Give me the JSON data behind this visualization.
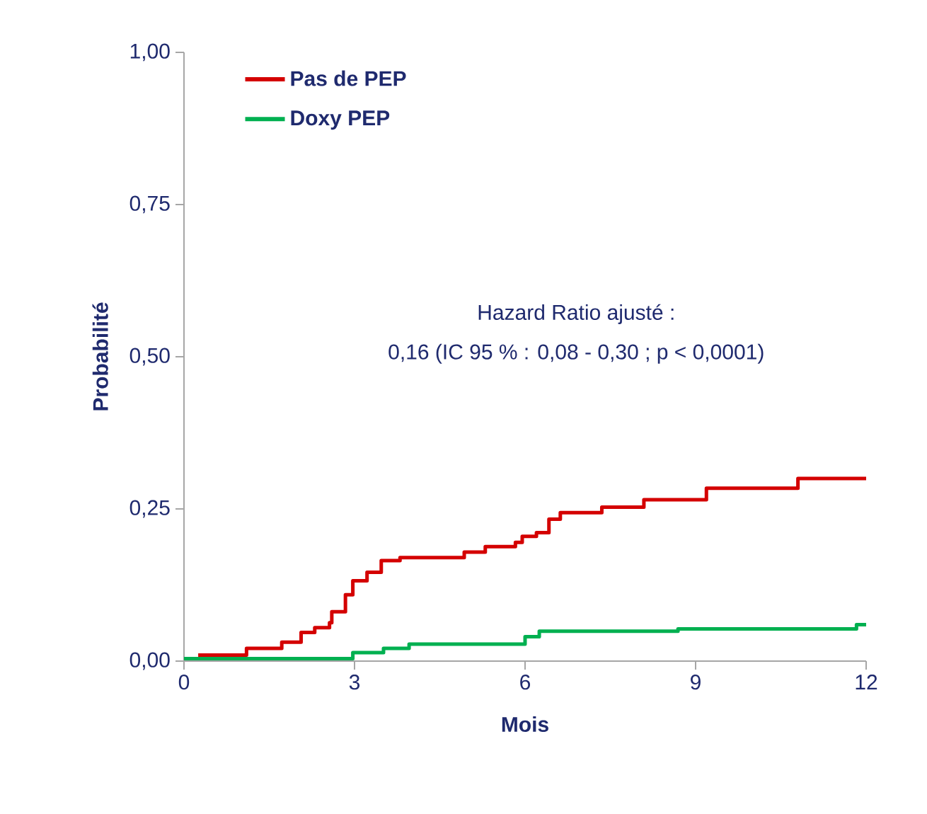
{
  "chart_data": {
    "type": "step",
    "xlabel": "Mois",
    "ylabel": "Probabilité",
    "xlim": [
      0,
      12
    ],
    "xticks": [
      0,
      3,
      6,
      9,
      12
    ],
    "ylim": [
      0,
      1
    ],
    "yticks": [
      {
        "value": 0,
        "label": "0,00"
      },
      {
        "value": 0.25,
        "label": "0,25"
      },
      {
        "value": 0.5,
        "label": "0,50"
      },
      {
        "value": 0.75,
        "label": "0,75"
      },
      {
        "value": 1,
        "label": "1,00"
      }
    ],
    "legend": "top left",
    "annotations": [
      "Hazard Ratio ajusté :",
      "0,16 (IC 95 % : 0,08 - 0,30 ; p < 0,0001)"
    ],
    "series": [
      {
        "name": "Pas de PEP",
        "color": "#d40000",
        "x": [
          0.25,
          1.1,
          1.72,
          2.06,
          2.3,
          2.56,
          2.6,
          2.84,
          2.97,
          3.22,
          3.47,
          3.8,
          4.93,
          5.3,
          5.83,
          5.95,
          6.2,
          6.42,
          6.62,
          7.35,
          8.09,
          9.19,
          10.8,
          12
        ],
        "values": [
          0.01,
          0.021,
          0.031,
          0.047,
          0.055,
          0.063,
          0.081,
          0.109,
          0.132,
          0.146,
          0.165,
          0.17,
          0.179,
          0.188,
          0.195,
          0.205,
          0.211,
          0.233,
          0.244,
          0.253,
          0.265,
          0.284,
          0.3,
          0.3
        ]
      },
      {
        "name": "Doxy PEP",
        "color": "#00b050",
        "x": [
          0,
          2.97,
          3.51,
          3.96,
          6.0,
          6.25,
          8.69,
          11.83,
          12
        ],
        "values": [
          0.004,
          0.014,
          0.021,
          0.028,
          0.04,
          0.049,
          0.053,
          0.06,
          0.06
        ]
      }
    ]
  }
}
